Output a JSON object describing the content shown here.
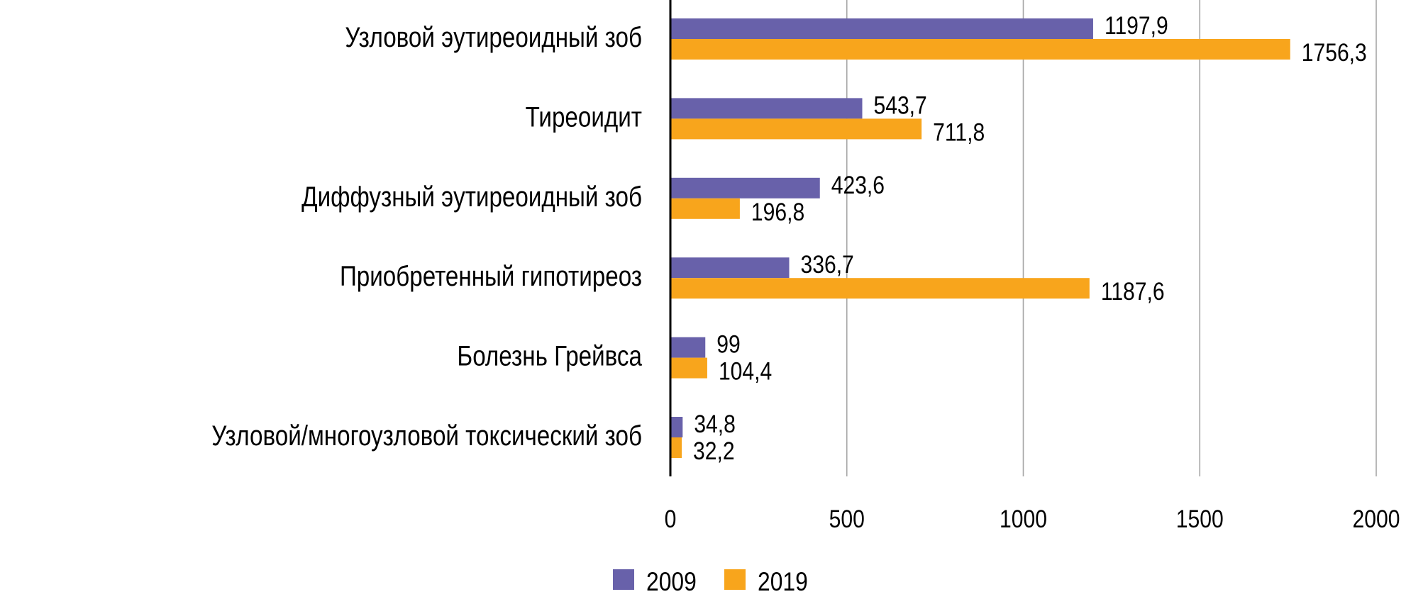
{
  "chart_data": {
    "type": "bar",
    "orientation": "horizontal",
    "title": "",
    "xlabel": "",
    "ylabel": "",
    "xlim": [
      0,
      2000
    ],
    "x_ticks": [
      "0",
      "500",
      "1000",
      "1500",
      "2000"
    ],
    "x_tick_values": [
      0,
      500,
      1000,
      1500,
      2000
    ],
    "grid": true,
    "legend_position": "bottom",
    "categories": [
      "Узловой эутиреоидный зоб",
      "Тиреоидит",
      "Диффузный эутиреоидный зоб",
      "Приобретенный гипотиреоз",
      "Болезнь Грейвса",
      "Узловой/многоузловой токсический зоб"
    ],
    "series": [
      {
        "name": "2009",
        "color": "#6861AA",
        "values": [
          1197.9,
          543.7,
          423.6,
          336.7,
          99,
          34.8
        ],
        "labels": [
          "1197,9",
          "543,7",
          "423,6",
          "336,7",
          "99",
          "34,8"
        ]
      },
      {
        "name": "2019",
        "color": "#F8A51C",
        "values": [
          1756.3,
          711.8,
          196.8,
          1187.6,
          104.4,
          32.2
        ],
        "labels": [
          "1756,3",
          "711,8",
          "196,8",
          "1187,6",
          "104,4",
          "32,2"
        ]
      }
    ],
    "axis_color": "#000000",
    "grid_color": "#A6A6A6"
  }
}
